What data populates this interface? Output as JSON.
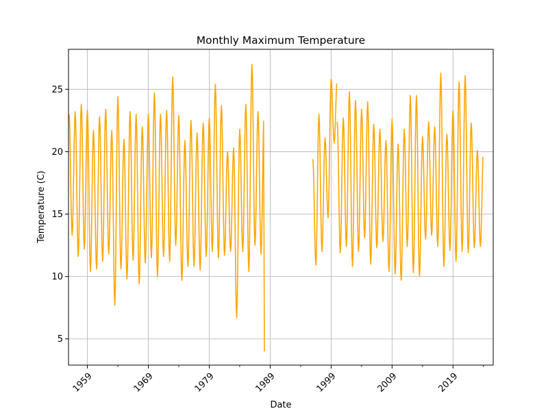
{
  "chart_data": {
    "type": "line",
    "title": "Monthly Maximum Temperature",
    "xlabel": "Date",
    "ylabel": "Temperature (C)",
    "x_domain_years": [
      1955.9,
      2025.6
    ],
    "ylim": [
      2.9,
      28.2
    ],
    "x_ticks": [
      1959,
      1969,
      1979,
      1989,
      1999,
      2009,
      2019
    ],
    "x_minor_ticks": [
      1964,
      1974,
      1984,
      1994,
      2004,
      2014,
      2024
    ],
    "y_ticks": [
      5,
      10,
      15,
      20,
      25
    ],
    "grid": true,
    "line_color": "#FFA500",
    "series": [
      {
        "segments": [
          {
            "start_year": 1956,
            "yearly_peaks": [
              23.0,
              23.2,
              23.8,
              23.3,
              21.7,
              22.8,
              23.4,
              21.7,
              24.4,
              21.0,
              23.2,
              23.0,
              22.0,
              23.0,
              24.7,
              23.0,
              23.3,
              26.0,
              22.9,
              20.9,
              22.5,
              21.5,
              22.3,
              22.7,
              25.4,
              23.7,
              20.0,
              20.3,
              21.8,
              23.8,
              27.0,
              23.2
            ],
            "yearly_troughs": [
              13.3,
              11.6,
              12.2,
              10.4,
              10.6,
              11.2,
              11.8,
              7.7,
              10.6,
              9.8,
              11.3,
              9.4,
              11.1,
              11.5,
              10.0,
              11.6,
              11.2,
              12.5,
              9.7,
              10.8,
              10.8,
              10.5,
              11.6,
              12.0,
              11.5,
              11.7,
              12.0,
              6.7,
              12.0,
              10.4,
              12.5,
              11.8
            ],
            "end_value": 4.0
          },
          {
            "start_year": 1996,
            "yearly_peaks": [
              19.4,
              23.0,
              21.1,
              25.8
            ],
            "yearly_troughs": [
              10.9,
              12.0,
              14.7,
              20.7
            ]
          },
          {
            "start_year": 2000,
            "yearly_peaks": [
              22.4,
              22.7,
              24.8,
              24.1,
              23.4,
              24.0,
              22.2,
              21.8,
              20.9,
              22.6,
              20.6,
              21.8,
              24.5,
              24.5,
              21.2,
              22.4,
              22.0,
              26.3,
              21.4,
              23.3,
              25.6,
              26.1,
              22.3,
              20.1
            ],
            "yearly_troughs": [
              11.9,
              12.4,
              10.8,
              12.0,
              13.1,
              11.0,
              12.3,
              12.8,
              10.4,
              10.2,
              9.7,
              12.4,
              10.3,
              10.0,
              13.0,
              13.3,
              12.4,
              10.8,
              12.1,
              11.2,
              12.0,
              11.9,
              12.3,
              12.4
            ]
          }
        ]
      }
    ]
  }
}
